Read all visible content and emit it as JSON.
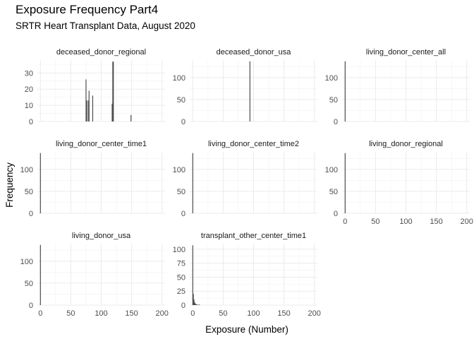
{
  "title": "Exposure Frequency Part4",
  "subtitle": "SRTR Heart Transplant Data, August 2020",
  "chart_data": {
    "type": "bar",
    "xlabel": "Exposure (Number)",
    "ylabel": "Frequency",
    "xlim": [
      -5,
      205
    ],
    "x_ticks": [
      0,
      50,
      100,
      150,
      200
    ],
    "grid": true,
    "panels": [
      {
        "name": "deceased_donor_regional",
        "ylim": [
          0,
          38
        ],
        "y_ticks": [
          0,
          10,
          20,
          30
        ],
        "bars": [
          [
            75,
            26
          ],
          [
            76.5,
            13
          ],
          [
            79,
            13
          ],
          [
            80,
            19
          ],
          [
            86,
            16
          ],
          [
            118,
            11
          ],
          [
            119,
            37
          ],
          [
            120,
            37
          ],
          [
            149,
            4
          ]
        ]
      },
      {
        "name": "deceased_donor_usa",
        "ylim": [
          0,
          140
        ],
        "y_ticks": [
          0,
          50,
          100
        ],
        "bars": [
          [
            94,
            137
          ]
        ]
      },
      {
        "name": "living_donor_center_all",
        "ylim": [
          0,
          140
        ],
        "y_ticks": [
          0,
          50,
          100
        ],
        "bars": [
          [
            0,
            137
          ]
        ]
      },
      {
        "name": "living_donor_center_time1",
        "ylim": [
          0,
          140
        ],
        "y_ticks": [
          0,
          50,
          100
        ],
        "bars": [
          [
            0,
            137
          ]
        ]
      },
      {
        "name": "living_donor_center_time2",
        "ylim": [
          0,
          140
        ],
        "y_ticks": [
          0,
          50,
          100
        ],
        "bars": [
          [
            0,
            137
          ]
        ]
      },
      {
        "name": "living_donor_regional",
        "ylim": [
          0,
          140
        ],
        "y_ticks": [
          0,
          50,
          100
        ],
        "bars": [
          [
            0,
            137
          ]
        ]
      },
      {
        "name": "living_donor_usa",
        "ylim": [
          0,
          140
        ],
        "y_ticks": [
          0,
          50,
          100
        ],
        "bars": [
          [
            0,
            137
          ]
        ]
      },
      {
        "name": "transplant_other_center_time1",
        "ylim": [
          0,
          110
        ],
        "y_ticks": [
          0,
          25,
          50,
          75,
          100
        ],
        "bars": [
          [
            0,
            107
          ],
          [
            1,
            20
          ],
          [
            2,
            10
          ],
          [
            3,
            5
          ],
          [
            4,
            3
          ],
          [
            5,
            2
          ],
          [
            6,
            1
          ],
          [
            7,
            1
          ],
          [
            9,
            1
          ],
          [
            11,
            1
          ]
        ]
      }
    ]
  }
}
